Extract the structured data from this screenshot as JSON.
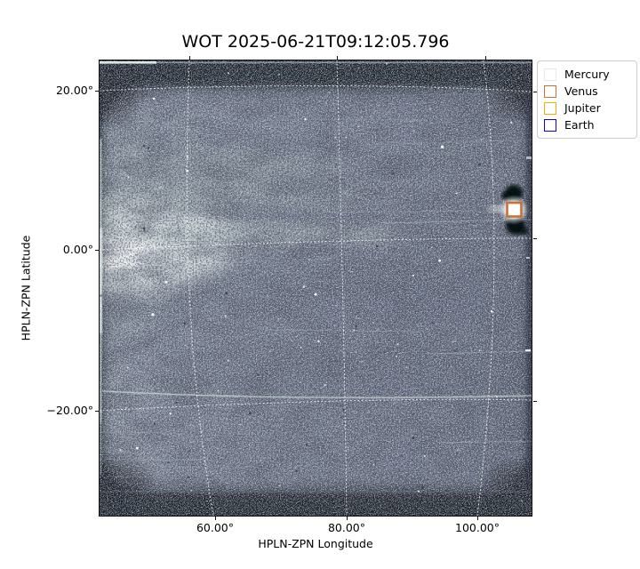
{
  "figure": {
    "title": "WOT 2025-06-21T09:12:05.796",
    "background_color": "#ffffff"
  },
  "axes": {
    "xlabel": "HPLN-ZPN Longitude",
    "ylabel": "HPLN-ZPN Latitude",
    "x_ticks": [
      "60.00°",
      "80.00°",
      "100.00°"
    ],
    "y_ticks": [
      "20.00°",
      "0.00°",
      "−20.00°"
    ],
    "grid_style": "white dotted curved graticule (ZPN projection)",
    "spine_color": "#111111"
  },
  "legend": {
    "items": [
      {
        "label": "Mercury",
        "color": "#e8e8e8"
      },
      {
        "label": "Venus",
        "color": "#c87137"
      },
      {
        "label": "Jupiter",
        "color": "#ffa800"
      },
      {
        "label": "Earth",
        "color": "#0f00ee"
      }
    ]
  },
  "overlay_markers": [
    {
      "planet": "Venus",
      "color": "#c87137",
      "lon_deg": 105.7,
      "lat_deg": 5.1,
      "note": "saturated source with black bleed blobs above and below, white glow streak"
    }
  ],
  "chart_data": {
    "type": "heatmap",
    "title": "WOT 2025-06-21T09:12:05.796",
    "xlabel": "HPLN-ZPN Longitude",
    "ylabel": "HPLN-ZPN Latitude",
    "x_tick_values_deg": [
      60,
      80,
      100
    ],
    "y_tick_values_deg": [
      20,
      0,
      -20
    ],
    "xlim_deg": [
      42,
      108
    ],
    "ylim_deg": [
      -33,
      24
    ],
    "grid": "dotted white meridians/parallels, curved by ZPN projection",
    "legend_position": "outside upper-right",
    "markers": [
      {
        "name": "Venus",
        "lon_deg": 105.7,
        "lat_deg": 5.1
      }
    ],
    "image_description": "Wide-field heliospheric image: dark slate-blue starfield with fine grain noise, bright F-corona haze wedge at left edge, faint horizontal dust/satellite trails, dark vignetted rounded frame with noisy top and bottom bands, saturated Venus near right edge"
  }
}
